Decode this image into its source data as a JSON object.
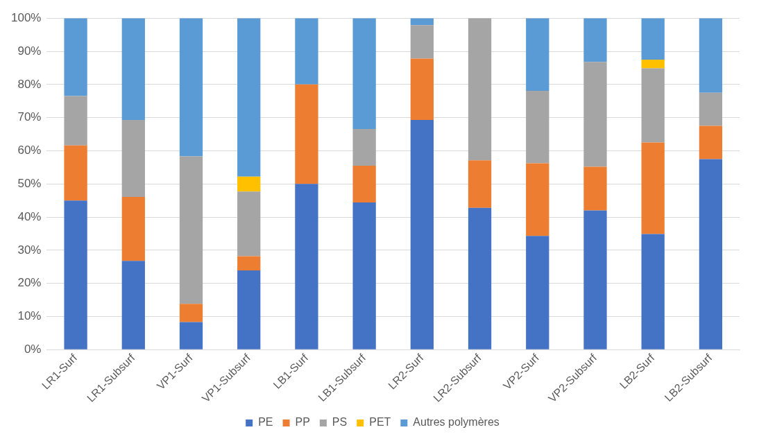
{
  "chart_data": {
    "type": "bar",
    "stacked": true,
    "categories": [
      "LR1-Surf",
      "LR1-Subsurf",
      "VP1-Surf",
      "VP1-Subsurf",
      "LB1-Surf",
      "LB1-Subsurf",
      "LR2-Surf",
      "LR2-Subsurf",
      "VP2-Surf",
      "VP2-Subsurf",
      "LB2-Surf",
      "LB2-Subsurf"
    ],
    "series": [
      {
        "name": "PE",
        "color": "#4472c4",
        "values": [
          45,
          26.8,
          8.3,
          23.9,
          50,
          44.4,
          69.3,
          42.8,
          34.3,
          42,
          34.9,
          57.5
        ]
      },
      {
        "name": "PP",
        "color": "#ed7d31",
        "values": [
          16.6,
          19.3,
          5.5,
          4.3,
          30,
          11.1,
          18.5,
          14.3,
          21.9,
          13.2,
          27.6,
          10
        ]
      },
      {
        "name": "PS",
        "color": "#a5a5a5",
        "values": [
          14.9,
          23.2,
          44.5,
          19.5,
          0,
          11.1,
          10.1,
          42.9,
          21.9,
          31.6,
          22.4,
          10
        ]
      },
      {
        "name": "PET",
        "color": "#ffc000",
        "values": [
          0,
          0,
          0,
          4.5,
          0,
          0,
          0,
          0,
          0,
          0,
          2.6,
          0
        ]
      },
      {
        "name": "Autres polymères",
        "color": "#5b9bd5",
        "values": [
          23.5,
          30.7,
          41.7,
          47.8,
          20,
          33.4,
          2.1,
          0,
          21.9,
          13.2,
          12.5,
          22.5
        ]
      }
    ],
    "ylim": [
      0,
      100
    ],
    "yticks": [
      {
        "value": 0,
        "label": "0%"
      },
      {
        "value": 10,
        "label": "10%"
      },
      {
        "value": 20,
        "label": "20%"
      },
      {
        "value": 30,
        "label": "30%"
      },
      {
        "value": 40,
        "label": "40%"
      },
      {
        "value": 50,
        "label": "50%"
      },
      {
        "value": 60,
        "label": "60%"
      },
      {
        "value": 70,
        "label": "70%"
      },
      {
        "value": 80,
        "label": "80%"
      },
      {
        "value": 90,
        "label": "90%"
      },
      {
        "value": 100,
        "label": "100%"
      }
    ],
    "grid": "y",
    "legend": "bottom"
  }
}
